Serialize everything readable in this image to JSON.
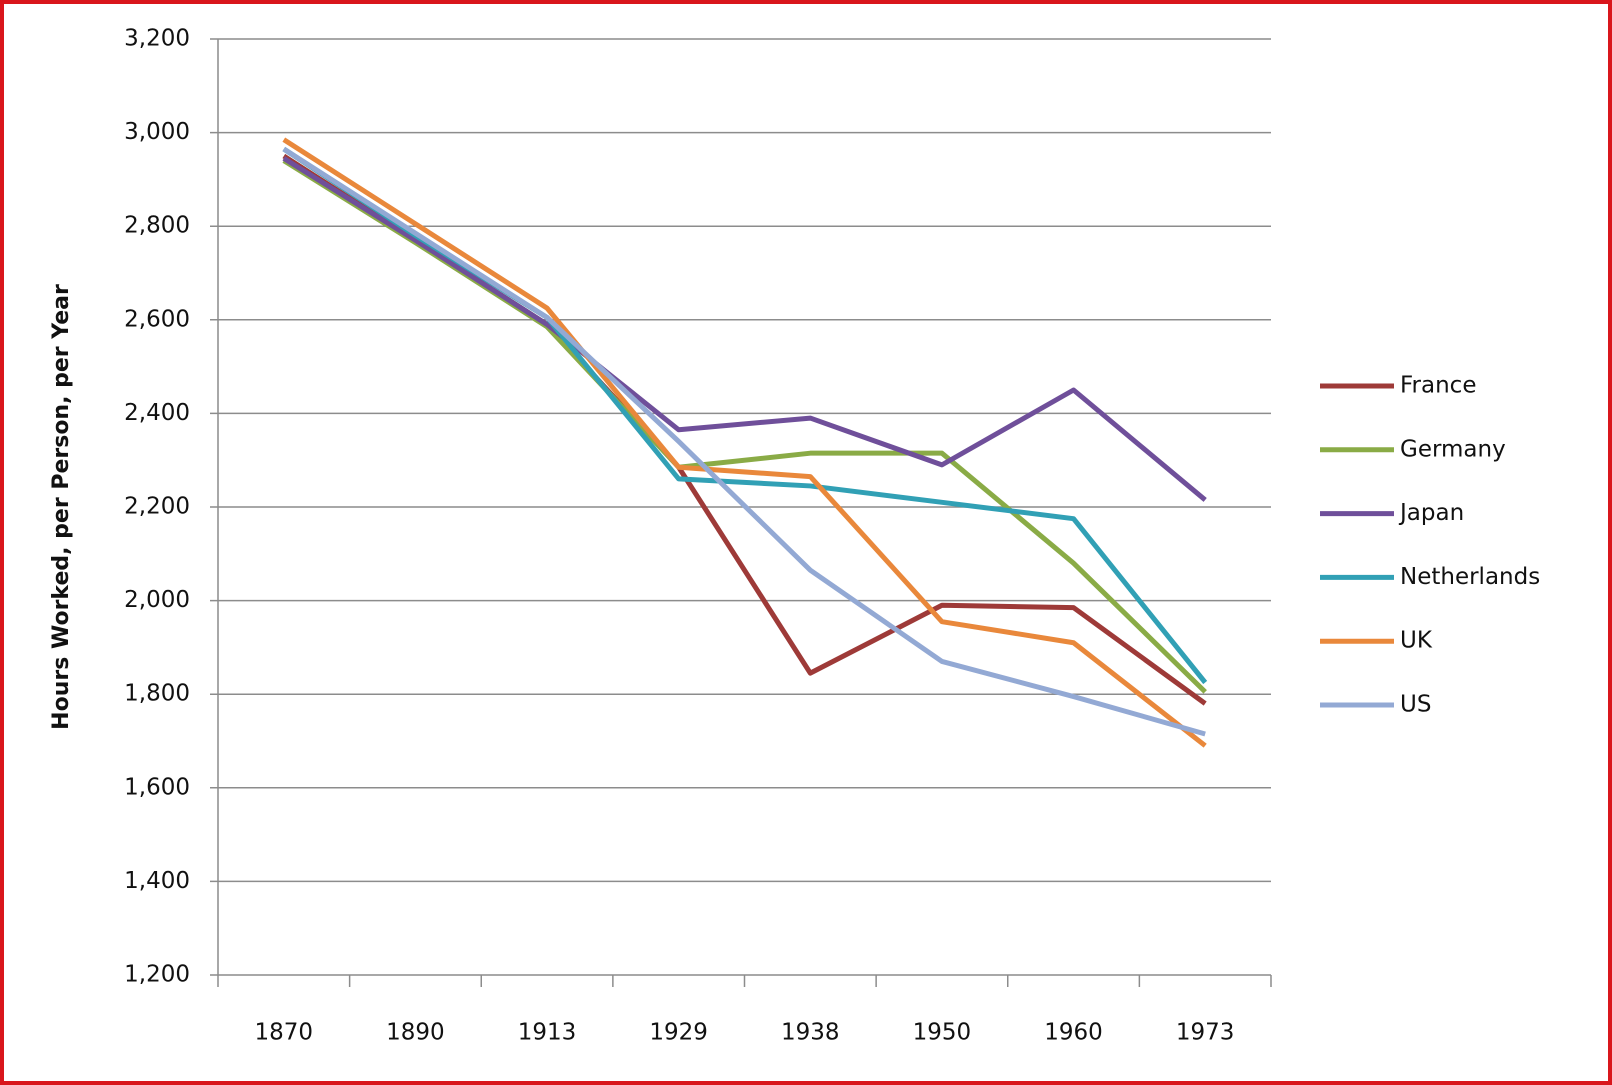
{
  "chart_data": {
    "type": "line",
    "y_axis_label": "Hours Worked, per Person, per Year",
    "categories": [
      "1870",
      "1890",
      "1913",
      "1929",
      "1938",
      "1950",
      "1960",
      "1973"
    ],
    "series": [
      {
        "name": "France",
        "color": "#9e3a38",
        "values": [
          2950,
          2770,
          2590,
          2285,
          1845,
          1990,
          1985,
          1780
        ]
      },
      {
        "name": "Germany",
        "color": "#8aab46",
        "values": [
          2940,
          2765,
          2585,
          2285,
          2315,
          2315,
          2080,
          1805
        ]
      },
      {
        "name": "Japan",
        "color": "#6f4f9a",
        "values": [
          2945,
          2770,
          2590,
          2365,
          2390,
          2290,
          2450,
          2215
        ]
      },
      {
        "name": "Netherlands",
        "color": "#31a0b5",
        "values": [
          2965,
          2780,
          2605,
          2260,
          2245,
          2210,
          2175,
          1825
        ]
      },
      {
        "name": "UK",
        "color": "#e9883b",
        "values": [
          2985,
          2805,
          2625,
          2285,
          2265,
          1955,
          1910,
          1690
        ]
      },
      {
        "name": "US",
        "color": "#93a9d4",
        "values": [
          2965,
          2785,
          2605,
          2340,
          2065,
          1870,
          1795,
          1715
        ]
      }
    ],
    "ylim": [
      1200,
      3200
    ],
    "yticks": [
      {
        "value": 1200,
        "label": "1,200"
      },
      {
        "value": 1400,
        "label": "1,400"
      },
      {
        "value": 1600,
        "label": "1,600"
      },
      {
        "value": 1800,
        "label": "1,800"
      },
      {
        "value": 2000,
        "label": "2,000"
      },
      {
        "value": 2200,
        "label": "2,200"
      },
      {
        "value": 2400,
        "label": "2,400"
      },
      {
        "value": 2600,
        "label": "2,600"
      },
      {
        "value": 2800,
        "label": "2,800"
      },
      {
        "value": 3000,
        "label": "3,000"
      },
      {
        "value": 3200,
        "label": "3,200"
      }
    ],
    "grid": true,
    "legend": "right"
  }
}
